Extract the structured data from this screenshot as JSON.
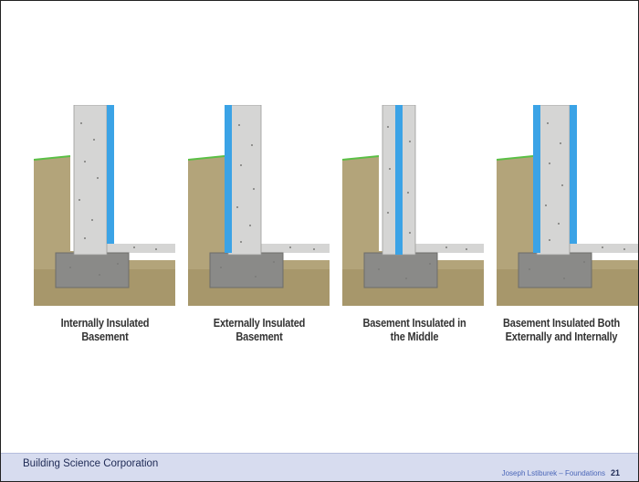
{
  "diagram": {
    "panels": [
      {
        "id": "internal",
        "caption_line1": "Internally Insulated",
        "caption_line2": "Basement"
      },
      {
        "id": "external",
        "caption_line1": "Externally Insulated",
        "caption_line2": "Basement"
      },
      {
        "id": "middle",
        "caption_line1": "Basement Insulated in",
        "caption_line2": "the Middle"
      },
      {
        "id": "both",
        "caption_line1": "Basement Insulated Both",
        "caption_line2": "Externally and Internally"
      }
    ],
    "colors": {
      "soil": "#b3a47a",
      "soil_dark": "#8f7f52",
      "concrete": "#d5d5d4",
      "footing": "#8a8a88",
      "insulation": "#3ba3e6",
      "grass": "#5bbf46"
    }
  },
  "footer": {
    "organization": "Building Science Corporation",
    "author": "Joseph Lstiburek – Foundations",
    "page": "21"
  }
}
